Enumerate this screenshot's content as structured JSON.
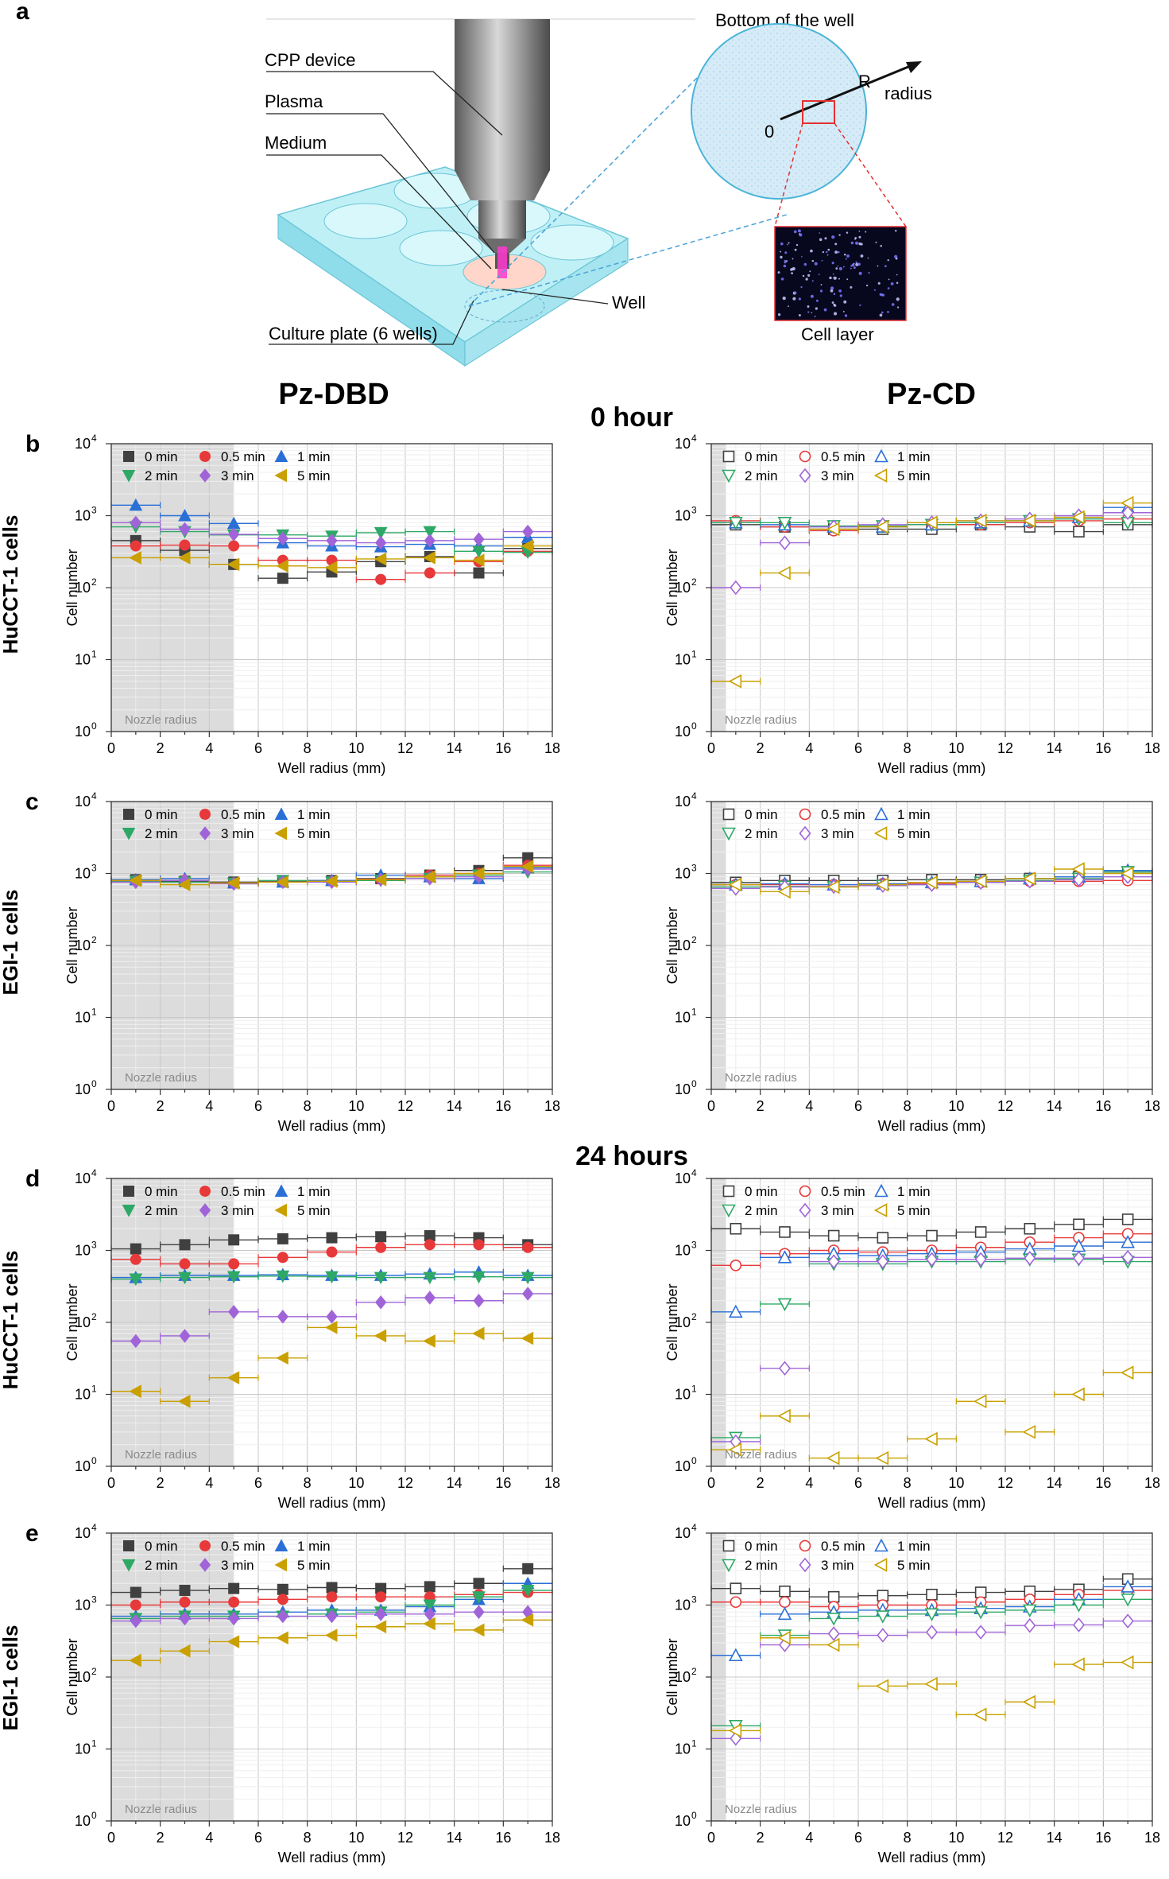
{
  "figure": {
    "panel_a": "a",
    "diagram": {
      "cpp_device": "CPP device",
      "plasma": "Plasma",
      "medium": "Medium",
      "culture_plate": "Culture plate (6 wells)",
      "well": "Well",
      "bottom_of_well": "Bottom of the well",
      "R": "R",
      "radius": "radius",
      "zero": "0",
      "cell_layer": "Cell layer"
    },
    "col_left": "Pz-DBD",
    "col_right": "Pz-CD",
    "time_0": "0 hour",
    "time_24": "24 hours",
    "row_b_letter": "b",
    "row_c_letter": "c",
    "row_d_letter": "d",
    "row_e_letter": "e",
    "row_b_cells": "HuCCT-1 cells",
    "row_c_cells": "EGI-1 cells",
    "row_d_cells": "HuCCT-1 cells",
    "row_e_cells": "EGI-1 cells"
  },
  "colors": {
    "0 min": "#404040",
    "0.5 min": "#e8393a",
    "1 min": "#2a6fd6",
    "2 min": "#2ea866",
    "3 min": "#a064d8",
    "5 min": "#c9a000"
  },
  "chart_data": [
    {
      "id": "b-left",
      "type": "scatter",
      "filled": true,
      "xlabel": "Well radius (mm)",
      "ylabel": "Cell number",
      "xlim": [
        0,
        18
      ],
      "ylim_log10": [
        0,
        4
      ],
      "shade_to": 5,
      "shade_label": "Nozzle radius",
      "x": [
        1,
        3,
        5,
        7,
        9,
        11,
        13,
        15,
        17
      ],
      "series": [
        {
          "name": "0 min",
          "values": [
            450,
            330,
            210,
            135,
            165,
            230,
            270,
            160,
            350
          ]
        },
        {
          "name": "0.5 min",
          "values": [
            380,
            390,
            380,
            240,
            240,
            130,
            160,
            230,
            320
          ]
        },
        {
          "name": "1 min",
          "values": [
            1400,
            1000,
            780,
            420,
            380,
            370,
            400,
            380,
            500
          ]
        },
        {
          "name": "2 min",
          "values": [
            700,
            600,
            540,
            540,
            520,
            580,
            600,
            320,
            310
          ]
        },
        {
          "name": "3 min",
          "values": [
            800,
            650,
            550,
            480,
            450,
            420,
            450,
            470,
            600
          ]
        },
        {
          "name": "5 min",
          "values": [
            260,
            260,
            210,
            200,
            190,
            250,
            260,
            240,
            380
          ]
        }
      ]
    },
    {
      "id": "b-right",
      "type": "scatter",
      "filled": false,
      "xlabel": "Well radius (mm)",
      "ylabel": "Cell number",
      "xlim": [
        0,
        18
      ],
      "ylim_log10": [
        0,
        4
      ],
      "shade_to": 0.6,
      "shade_label": "Nozzle radius",
      "x": [
        1,
        3,
        5,
        7,
        9,
        11,
        13,
        15,
        17
      ],
      "series": [
        {
          "name": "0 min",
          "values": [
            750,
            700,
            650,
            650,
            650,
            750,
            700,
            600,
            750
          ]
        },
        {
          "name": "0.5 min",
          "values": [
            850,
            700,
            620,
            700,
            750,
            750,
            800,
            850,
            900
          ]
        },
        {
          "name": "1 min",
          "values": [
            800,
            750,
            700,
            700,
            750,
            800,
            850,
            950,
            1300
          ]
        },
        {
          "name": "2 min",
          "values": [
            800,
            800,
            720,
            720,
            750,
            800,
            850,
            900,
            800
          ]
        },
        {
          "name": "3 min",
          "values": [
            100,
            420,
            700,
            750,
            800,
            850,
            900,
            1000,
            1100
          ]
        },
        {
          "name": "5 min",
          "values": [
            5,
            160,
            650,
            700,
            800,
            850,
            850,
            950,
            1500
          ]
        }
      ]
    },
    {
      "id": "c-left",
      "type": "scatter",
      "filled": true,
      "xlabel": "Well radius (mm)",
      "ylabel": "Cell number",
      "xlim": [
        0,
        18
      ],
      "ylim_log10": [
        0,
        4
      ],
      "shade_to": 5,
      "shade_label": "Nozzle radius",
      "x": [
        1,
        3,
        5,
        7,
        9,
        11,
        13,
        15,
        17
      ],
      "series": [
        {
          "name": "0 min",
          "values": [
            820,
            780,
            760,
            780,
            800,
            850,
            950,
            1100,
            1650
          ]
        },
        {
          "name": "0.5 min",
          "values": [
            800,
            800,
            740,
            760,
            780,
            830,
            950,
            1000,
            1300
          ]
        },
        {
          "name": "1 min",
          "values": [
            820,
            850,
            740,
            760,
            800,
            950,
            900,
            850,
            1200
          ]
        },
        {
          "name": "2 min",
          "values": [
            780,
            760,
            730,
            800,
            760,
            800,
            850,
            950,
            1050
          ]
        },
        {
          "name": "3 min",
          "values": [
            760,
            800,
            720,
            760,
            760,
            820,
            850,
            900,
            1150
          ]
        },
        {
          "name": "5 min",
          "values": [
            800,
            700,
            740,
            760,
            780,
            820,
            900,
            1000,
            1250
          ]
        }
      ]
    },
    {
      "id": "c-right",
      "type": "scatter",
      "filled": false,
      "xlabel": "Well radius (mm)",
      "ylabel": "Cell number",
      "xlim": [
        0,
        18
      ],
      "ylim_log10": [
        0,
        4
      ],
      "shade_to": 0.6,
      "shade_label": "Nozzle radius",
      "x": [
        1,
        3,
        5,
        7,
        9,
        11,
        13,
        15,
        17
      ],
      "series": [
        {
          "name": "0 min",
          "values": [
            750,
            800,
            800,
            800,
            820,
            820,
            850,
            900,
            1050
          ]
        },
        {
          "name": "0.5 min",
          "values": [
            700,
            700,
            700,
            720,
            720,
            750,
            780,
            780,
            800
          ]
        },
        {
          "name": "1 min",
          "values": [
            700,
            720,
            700,
            720,
            750,
            780,
            850,
            900,
            1100
          ]
        },
        {
          "name": "2 min",
          "values": [
            650,
            660,
            650,
            680,
            700,
            750,
            800,
            850,
            1050
          ]
        },
        {
          "name": "3 min",
          "values": [
            620,
            650,
            660,
            680,
            700,
            750,
            780,
            820,
            900
          ]
        },
        {
          "name": "5 min",
          "values": [
            700,
            560,
            650,
            700,
            750,
            780,
            850,
            1150,
            1000
          ]
        }
      ]
    },
    {
      "id": "d-left",
      "type": "scatter",
      "filled": true,
      "xlabel": "Well radius (mm)",
      "ylabel": "Cell number",
      "xlim": [
        0,
        18
      ],
      "ylim_log10": [
        0,
        4
      ],
      "shade_to": 5,
      "shade_label": "Nozzle radius",
      "x": [
        1,
        3,
        5,
        7,
        9,
        11,
        13,
        15,
        17
      ],
      "series": [
        {
          "name": "0 min",
          "values": [
            1050,
            1200,
            1400,
            1450,
            1500,
            1550,
            1600,
            1500,
            1200
          ]
        },
        {
          "name": "0.5 min",
          "values": [
            750,
            650,
            650,
            800,
            950,
            1100,
            1200,
            1200,
            1100
          ]
        },
        {
          "name": "1 min",
          "values": [
            420,
            450,
            450,
            460,
            450,
            450,
            470,
            500,
            450
          ]
        },
        {
          "name": "2 min",
          "values": [
            400,
            420,
            430,
            440,
            430,
            420,
            420,
            430,
            420
          ]
        },
        {
          "name": "3 min",
          "values": [
            55,
            65,
            140,
            120,
            120,
            190,
            220,
            200,
            250
          ]
        },
        {
          "name": "5 min",
          "values": [
            11,
            8,
            17,
            32,
            85,
            65,
            55,
            70,
            60
          ]
        }
      ]
    },
    {
      "id": "d-right",
      "type": "scatter",
      "filled": false,
      "xlabel": "Well radius (mm)",
      "ylabel": "Cell number",
      "xlim": [
        0,
        18
      ],
      "ylim_log10": [
        0,
        4
      ],
      "shade_to": 0.6,
      "shade_label": "Nozzle radius",
      "x": [
        1,
        3,
        5,
        7,
        9,
        11,
        13,
        15,
        17
      ],
      "series": [
        {
          "name": "0 min",
          "values": [
            2000,
            1800,
            1600,
            1500,
            1600,
            1800,
            2000,
            2300,
            2700
          ]
        },
        {
          "name": "0.5 min",
          "values": [
            620,
            900,
            1000,
            950,
            1000,
            1100,
            1300,
            1500,
            1700
          ]
        },
        {
          "name": "1 min",
          "values": [
            140,
            800,
            900,
            850,
            900,
            950,
            1050,
            1150,
            1300
          ]
        },
        {
          "name": "2 min",
          "values": [
            2.5,
            180,
            650,
            650,
            700,
            700,
            750,
            750,
            700
          ]
        },
        {
          "name": "3 min",
          "values": [
            2.2,
            23,
            700,
            700,
            750,
            750,
            780,
            780,
            800
          ]
        },
        {
          "name": "5 min",
          "values": [
            1.7,
            5,
            1.3,
            1.3,
            2.4,
            8,
            3,
            10,
            20
          ]
        }
      ]
    },
    {
      "id": "e-left",
      "type": "scatter",
      "filled": true,
      "xlabel": "Well radius (mm)",
      "ylabel": "Cell number",
      "xlim": [
        0,
        18
      ],
      "ylim_log10": [
        0,
        4
      ],
      "shade_to": 5,
      "shade_label": "Nozzle radius",
      "x": [
        1,
        3,
        5,
        7,
        9,
        11,
        13,
        15,
        17
      ],
      "series": [
        {
          "name": "0 min",
          "values": [
            1500,
            1600,
            1700,
            1650,
            1750,
            1700,
            1800,
            2000,
            3200
          ]
        },
        {
          "name": "0.5 min",
          "values": [
            1000,
            1100,
            1100,
            1200,
            1300,
            1300,
            1300,
            1400,
            1500
          ]
        },
        {
          "name": "1 min",
          "values": [
            700,
            750,
            750,
            800,
            850,
            850,
            950,
            1200,
            2000
          ]
        },
        {
          "name": "2 min",
          "values": [
            650,
            700,
            700,
            700,
            750,
            800,
            1000,
            1300,
            1600
          ]
        },
        {
          "name": "3 min",
          "values": [
            600,
            650,
            650,
            700,
            700,
            750,
            750,
            800,
            800
          ]
        },
        {
          "name": "5 min",
          "values": [
            170,
            230,
            310,
            350,
            380,
            500,
            550,
            450,
            620
          ]
        }
      ]
    },
    {
      "id": "e-right",
      "type": "scatter",
      "filled": false,
      "xlabel": "Well radius (mm)",
      "ylabel": "Cell number",
      "xlim": [
        0,
        18
      ],
      "ylim_log10": [
        0,
        4
      ],
      "shade_to": 0.6,
      "shade_label": "Nozzle radius",
      "x": [
        1,
        3,
        5,
        7,
        9,
        11,
        13,
        15,
        17
      ],
      "series": [
        {
          "name": "0 min",
          "values": [
            1700,
            1550,
            1300,
            1350,
            1400,
            1500,
            1550,
            1650,
            2300
          ]
        },
        {
          "name": "0.5 min",
          "values": [
            1100,
            1100,
            950,
            1000,
            1000,
            1100,
            1200,
            1400,
            1600
          ]
        },
        {
          "name": "1 min",
          "values": [
            200,
            750,
            800,
            850,
            850,
            900,
            950,
            1200,
            1800
          ]
        },
        {
          "name": "2 min",
          "values": [
            21,
            380,
            650,
            700,
            750,
            800,
            850,
            1000,
            1200
          ]
        },
        {
          "name": "3 min",
          "values": [
            14,
            280,
            400,
            380,
            420,
            420,
            520,
            530,
            600
          ]
        },
        {
          "name": "5 min",
          "values": [
            18,
            350,
            280,
            75,
            80,
            30,
            45,
            150,
            160
          ]
        }
      ]
    }
  ]
}
